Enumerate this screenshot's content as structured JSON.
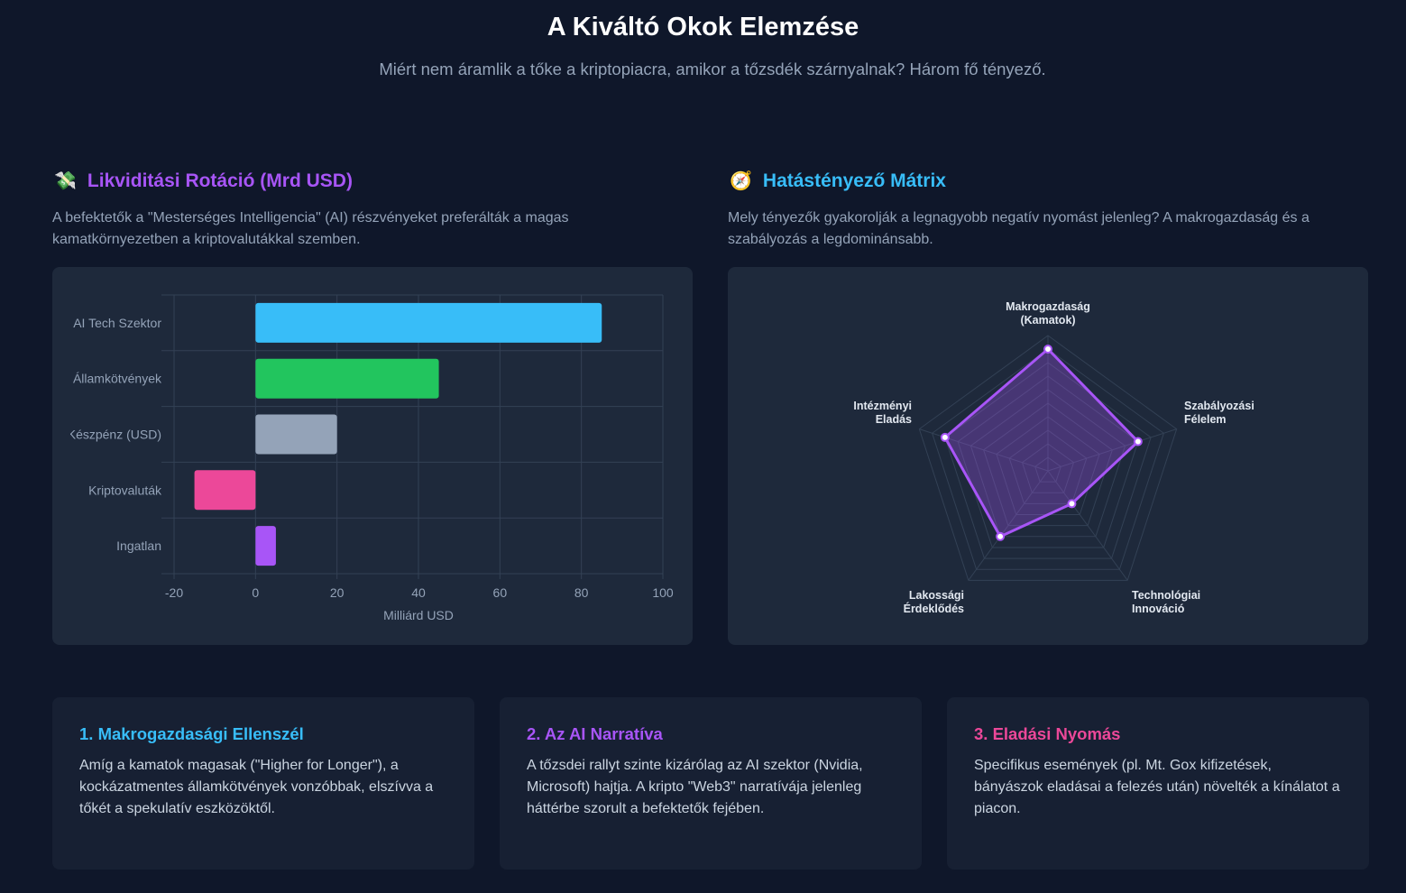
{
  "header": {
    "title": "A Kiváltó Okok Elemzése",
    "subtitle": "Miért nem áramlik a tőke a kriptopiacra, amikor a tőzsdék szárnyalnak? Három fő tényező."
  },
  "left": {
    "icon": "money-with-wings-icon",
    "icon_glyph": "💸",
    "title": "Likviditási Rotáció (Mrd USD)",
    "title_color": "#a855f7",
    "desc": "A befektetők a \"Mesterséges Intelligencia\" (AI) részvényeket preferálták a magas kamatkörnyezetben a kriptovalutákkal szemben."
  },
  "right": {
    "icon": "compass-icon",
    "icon_glyph": "🧭",
    "title": "Hatástényező Mátrix",
    "title_color": "#38bdf8",
    "desc": "Mely tényezők gyakorolják a legnagyobb negatív nyomást jelenleg? A makrogazdaság és a szabályozás a legdominánsabb."
  },
  "chart_data": [
    {
      "type": "bar",
      "orientation": "horizontal",
      "categories": [
        "AI Tech Szektor",
        "Államkötvények",
        "Készpénz (USD)",
        "Kriptovaluták",
        "Ingatlan"
      ],
      "values": [
        85,
        45,
        20,
        -15,
        5
      ],
      "colors": [
        "#38bdf8",
        "#22c55e",
        "#94a3b8",
        "#ec4899",
        "#a855f7"
      ],
      "xlabel": "Milliárd USD",
      "xlim": [
        -20,
        100
      ],
      "xticks": [
        "-20",
        "0",
        "20",
        "40",
        "60",
        "80",
        "100"
      ],
      "grid": true
    },
    {
      "type": "radar",
      "axes": [
        [
          "Makrogazdaság",
          "(Kamatok)"
        ],
        [
          "Szabályozási",
          "Félelem"
        ],
        [
          "Technológiai",
          "Innováció"
        ],
        [
          "Lakossági",
          "Érdeklődés"
        ],
        [
          "Intézményi",
          "Eladás"
        ]
      ],
      "values": [
        9,
        7,
        3,
        6,
        8
      ],
      "max": 10,
      "color": "#a855f7"
    }
  ],
  "cards": [
    {
      "title": "1. Makrogazdasági Ellenszél",
      "color": "#38bdf8",
      "text": "Amíg a kamatok magasak (\"Higher for Longer\"), a kockázatmentes államkötvények vonzóbbak, elszívva a tőkét a spekulatív eszközöktől."
    },
    {
      "title": "2. Az AI Narratíva",
      "color": "#a855f7",
      "text": "A tőzsdei rallyt szinte kizárólag az AI szektor (Nvidia, Microsoft) hajtja. A kripto \"Web3\" narratívája jelenleg háttérbe szorult a befektetők fejében."
    },
    {
      "title": "3. Eladási Nyomás",
      "color": "#ec4899",
      "text": "Specifikus események (pl. Mt. Gox kifizetések, bányászok eladásai a felezés után) növelték a kínálatot a piacon."
    }
  ]
}
